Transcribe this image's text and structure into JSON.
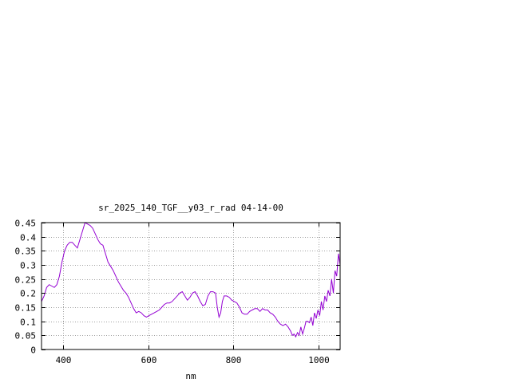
{
  "chart_data": {
    "type": "line",
    "title": "sr_2025_140_TGF__y03_r_rad 04-14-00",
    "xlabel": "nm",
    "ylabel": "",
    "xlim": [
      350,
      1050
    ],
    "ylim": [
      0,
      0.45
    ],
    "x_ticks": [
      400,
      600,
      800,
      1000
    ],
    "x_tick_labels": [
      "400",
      "600",
      "800",
      "1000"
    ],
    "y_ticks": [
      0,
      0.05,
      0.1,
      0.15,
      0.2,
      0.25,
      0.3,
      0.35,
      0.4,
      0.45
    ],
    "y_tick_labels": [
      "0",
      "0.05",
      "0.1",
      "0.15",
      "0.2",
      "0.25",
      "0.3",
      "0.35",
      "0.4",
      "0.45"
    ],
    "grid": true,
    "legend": "none",
    "series": [
      {
        "color": "#9400d3",
        "points": [
          [
            350,
            0.17
          ],
          [
            356,
            0.19
          ],
          [
            362,
            0.22
          ],
          [
            368,
            0.23
          ],
          [
            374,
            0.225
          ],
          [
            380,
            0.22
          ],
          [
            386,
            0.23
          ],
          [
            392,
            0.26
          ],
          [
            398,
            0.31
          ],
          [
            404,
            0.35
          ],
          [
            410,
            0.37
          ],
          [
            416,
            0.38
          ],
          [
            422,
            0.38
          ],
          [
            428,
            0.37
          ],
          [
            434,
            0.36
          ],
          [
            440,
            0.39
          ],
          [
            446,
            0.42
          ],
          [
            452,
            0.45
          ],
          [
            458,
            0.445
          ],
          [
            464,
            0.44
          ],
          [
            470,
            0.43
          ],
          [
            476,
            0.41
          ],
          [
            482,
            0.39
          ],
          [
            488,
            0.375
          ],
          [
            494,
            0.37
          ],
          [
            500,
            0.34
          ],
          [
            506,
            0.31
          ],
          [
            512,
            0.295
          ],
          [
            518,
            0.28
          ],
          [
            524,
            0.26
          ],
          [
            530,
            0.24
          ],
          [
            536,
            0.225
          ],
          [
            542,
            0.21
          ],
          [
            548,
            0.2
          ],
          [
            554,
            0.185
          ],
          [
            560,
            0.165
          ],
          [
            566,
            0.145
          ],
          [
            572,
            0.13
          ],
          [
            578,
            0.135
          ],
          [
            584,
            0.13
          ],
          [
            590,
            0.12
          ],
          [
            596,
            0.115
          ],
          [
            602,
            0.12
          ],
          [
            608,
            0.125
          ],
          [
            614,
            0.13
          ],
          [
            620,
            0.135
          ],
          [
            626,
            0.14
          ],
          [
            632,
            0.15
          ],
          [
            638,
            0.16
          ],
          [
            644,
            0.165
          ],
          [
            650,
            0.165
          ],
          [
            656,
            0.17
          ],
          [
            662,
            0.18
          ],
          [
            668,
            0.19
          ],
          [
            674,
            0.2
          ],
          [
            680,
            0.205
          ],
          [
            686,
            0.19
          ],
          [
            692,
            0.175
          ],
          [
            698,
            0.185
          ],
          [
            704,
            0.2
          ],
          [
            710,
            0.205
          ],
          [
            716,
            0.19
          ],
          [
            722,
            0.17
          ],
          [
            728,
            0.155
          ],
          [
            734,
            0.16
          ],
          [
            740,
            0.19
          ],
          [
            746,
            0.205
          ],
          [
            752,
            0.205
          ],
          [
            758,
            0.2
          ],
          [
            762,
            0.15
          ],
          [
            766,
            0.115
          ],
          [
            770,
            0.13
          ],
          [
            774,
            0.17
          ],
          [
            778,
            0.19
          ],
          [
            784,
            0.19
          ],
          [
            790,
            0.185
          ],
          [
            796,
            0.175
          ],
          [
            802,
            0.17
          ],
          [
            808,
            0.165
          ],
          [
            814,
            0.15
          ],
          [
            820,
            0.13
          ],
          [
            826,
            0.125
          ],
          [
            832,
            0.125
          ],
          [
            838,
            0.135
          ],
          [
            844,
            0.14
          ],
          [
            850,
            0.145
          ],
          [
            856,
            0.145
          ],
          [
            862,
            0.135
          ],
          [
            868,
            0.145
          ],
          [
            874,
            0.14
          ],
          [
            880,
            0.14
          ],
          [
            886,
            0.13
          ],
          [
            892,
            0.125
          ],
          [
            898,
            0.115
          ],
          [
            904,
            0.1
          ],
          [
            910,
            0.09
          ],
          [
            916,
            0.085
          ],
          [
            922,
            0.09
          ],
          [
            928,
            0.08
          ],
          [
            934,
            0.065
          ],
          [
            938,
            0.05
          ],
          [
            942,
            0.055
          ],
          [
            946,
            0.045
          ],
          [
            950,
            0.06
          ],
          [
            954,
            0.05
          ],
          [
            958,
            0.08
          ],
          [
            962,
            0.055
          ],
          [
            966,
            0.075
          ],
          [
            970,
            0.1
          ],
          [
            974,
            0.1
          ],
          [
            978,
            0.095
          ],
          [
            982,
            0.115
          ],
          [
            986,
            0.085
          ],
          [
            990,
            0.13
          ],
          [
            994,
            0.11
          ],
          [
            998,
            0.14
          ],
          [
            1002,
            0.12
          ],
          [
            1006,
            0.17
          ],
          [
            1010,
            0.14
          ],
          [
            1014,
            0.19
          ],
          [
            1018,
            0.17
          ],
          [
            1022,
            0.21
          ],
          [
            1026,
            0.19
          ],
          [
            1030,
            0.25
          ],
          [
            1034,
            0.2
          ],
          [
            1038,
            0.28
          ],
          [
            1042,
            0.26
          ],
          [
            1046,
            0.34
          ],
          [
            1050,
            0.3
          ]
        ]
      }
    ]
  }
}
